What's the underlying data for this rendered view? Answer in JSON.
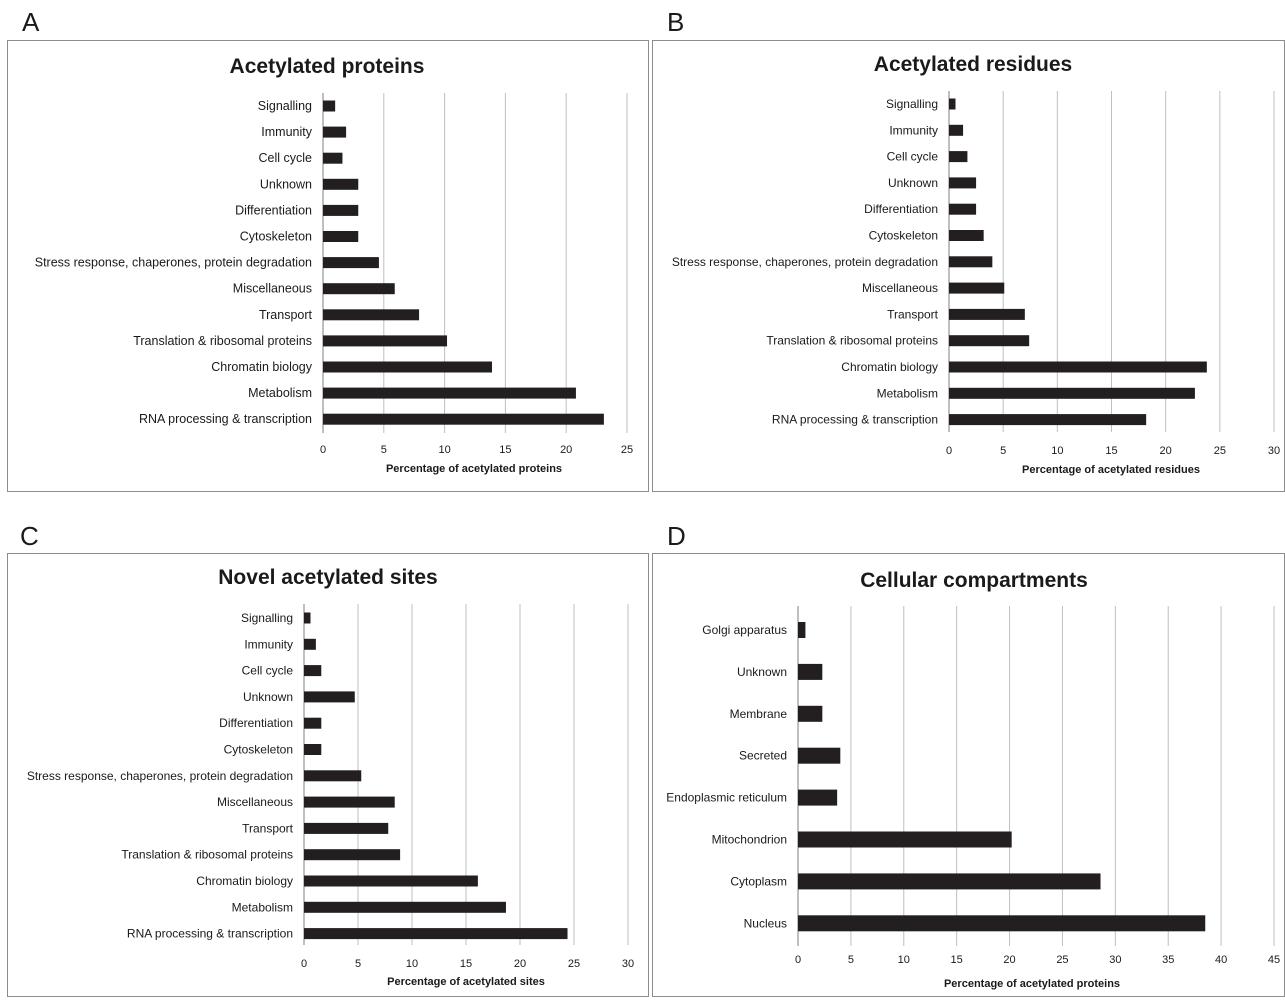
{
  "colors": {
    "bar": "#231f20",
    "grid": "#bfbfbf",
    "axis": "#7f7f7f",
    "frame": "#8c8c8c",
    "text": "#1a1a1a"
  },
  "chart_data": [
    {
      "panel_letter": "A",
      "type": "bar",
      "orientation": "horizontal",
      "title": "Acetylated proteins",
      "xlabel": "Percentage of acetylated proteins",
      "ylabel": "",
      "xlim": [
        0,
        25
      ],
      "xticks": [
        0,
        5,
        10,
        15,
        20,
        25
      ],
      "grid": true,
      "categories": [
        "Signalling",
        "Immunity",
        "Cell cycle",
        "Unknown",
        "Differentiation",
        "Cytoskeleton",
        "Stress response, chaperones, protein degradation",
        "Miscellaneous",
        "Transport",
        "Translation & ribosomal proteins",
        "Chromatin biology",
        "Metabolism",
        "RNA processing & transcription"
      ],
      "values": [
        1.0,
        1.9,
        1.6,
        2.9,
        2.9,
        2.9,
        4.6,
        5.9,
        7.9,
        10.2,
        13.9,
        20.8,
        23.1
      ]
    },
    {
      "panel_letter": "B",
      "type": "bar",
      "orientation": "horizontal",
      "title": "Acetylated residues",
      "xlabel": "Percentage of acetylated residues",
      "ylabel": "",
      "xlim": [
        0,
        30
      ],
      "xticks": [
        0,
        5,
        10,
        15,
        20,
        25,
        30
      ],
      "grid": true,
      "categories": [
        "Signalling",
        "Immunity",
        "Cell cycle",
        "Unknown",
        "Differentiation",
        "Cytoskeleton",
        "Stress response, chaperones, protein degradation",
        "Miscellaneous",
        "Transport",
        "Translation & ribosomal proteins",
        "Chromatin biology",
        "Metabolism",
        "RNA processing & transcription"
      ],
      "values": [
        0.6,
        1.3,
        1.7,
        2.5,
        2.5,
        3.2,
        4.0,
        5.1,
        7.0,
        7.4,
        23.8,
        22.7,
        18.2
      ]
    },
    {
      "panel_letter": "C",
      "type": "bar",
      "orientation": "horizontal",
      "title": "Novel acetylated sites",
      "xlabel": "Percentage of acetylated sites",
      "ylabel": "",
      "xlim": [
        0,
        30
      ],
      "xticks": [
        0,
        5,
        10,
        15,
        20,
        25,
        30
      ],
      "grid": true,
      "categories": [
        "Signalling",
        "Immunity",
        "Cell cycle",
        "Unknown",
        "Differentiation",
        "Cytoskeleton",
        "Stress response, chaperones, protein degradation",
        "Miscellaneous",
        "Transport",
        "Translation & ribosomal proteins",
        "Chromatin biology",
        "Metabolism",
        "RNA processing & transcription"
      ],
      "values": [
        0.6,
        1.1,
        1.6,
        4.7,
        1.6,
        1.6,
        5.3,
        8.4,
        7.8,
        8.9,
        16.1,
        18.7,
        24.4
      ]
    },
    {
      "panel_letter": "D",
      "type": "bar",
      "orientation": "horizontal",
      "title": "Cellular compartments",
      "xlabel": "Percentage of acetylated proteins",
      "ylabel": "",
      "xlim": [
        0,
        45
      ],
      "xticks": [
        0,
        5,
        10,
        15,
        20,
        25,
        30,
        35,
        40,
        45
      ],
      "grid": true,
      "categories": [
        "Golgi apparatus",
        "Unknown",
        "Membrane",
        "Secreted",
        "Endoplasmic reticulum",
        "Mitochondrion",
        "Cytoplasm",
        "Nucleus"
      ],
      "values": [
        0.7,
        2.3,
        2.3,
        4.0,
        3.7,
        20.2,
        28.6,
        38.5
      ]
    }
  ]
}
